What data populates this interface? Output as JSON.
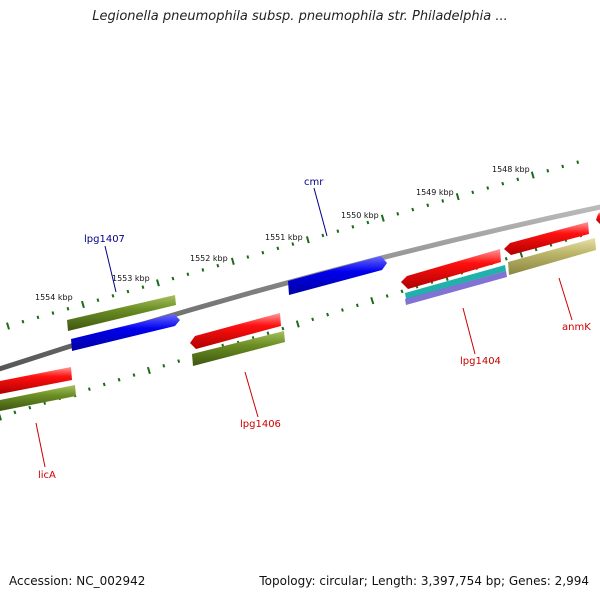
{
  "title": "Legionella pneumophila subsp. pneumophila str. Philadelphia ...",
  "footer": {
    "accession": "Accession: NC_002942",
    "topology": "Topology: circular; Length: 3,397,754 bp; Genes: 2,994"
  },
  "kbp_labels": [
    "1554 kbp",
    "1553 kbp",
    "1552 kbp",
    "1551 kbp",
    "1550 kbp",
    "1549 kbp",
    "1548 kbp"
  ],
  "gene_labels": [
    {
      "name": "lpg1407",
      "color": "#00008b"
    },
    {
      "name": "cmr",
      "color": "#00008b"
    },
    {
      "name": "lpg1406",
      "color": "#cc0000"
    },
    {
      "name": "lpg1404",
      "color": "#cc0000"
    },
    {
      "name": "anmK",
      "color": "#cc0000"
    },
    {
      "name": "licA",
      "color": "#cc0000"
    }
  ],
  "colors": {
    "backbone": "#808080",
    "tick": "#1a6b1a",
    "gene_red": "#ee0000",
    "gene_green": "#6b8e23",
    "gene_blue": "#0000ee",
    "gene_khaki": "#bdb76b",
    "gene_teal": "#20b2aa",
    "gene_slate": "#6a5acd"
  }
}
